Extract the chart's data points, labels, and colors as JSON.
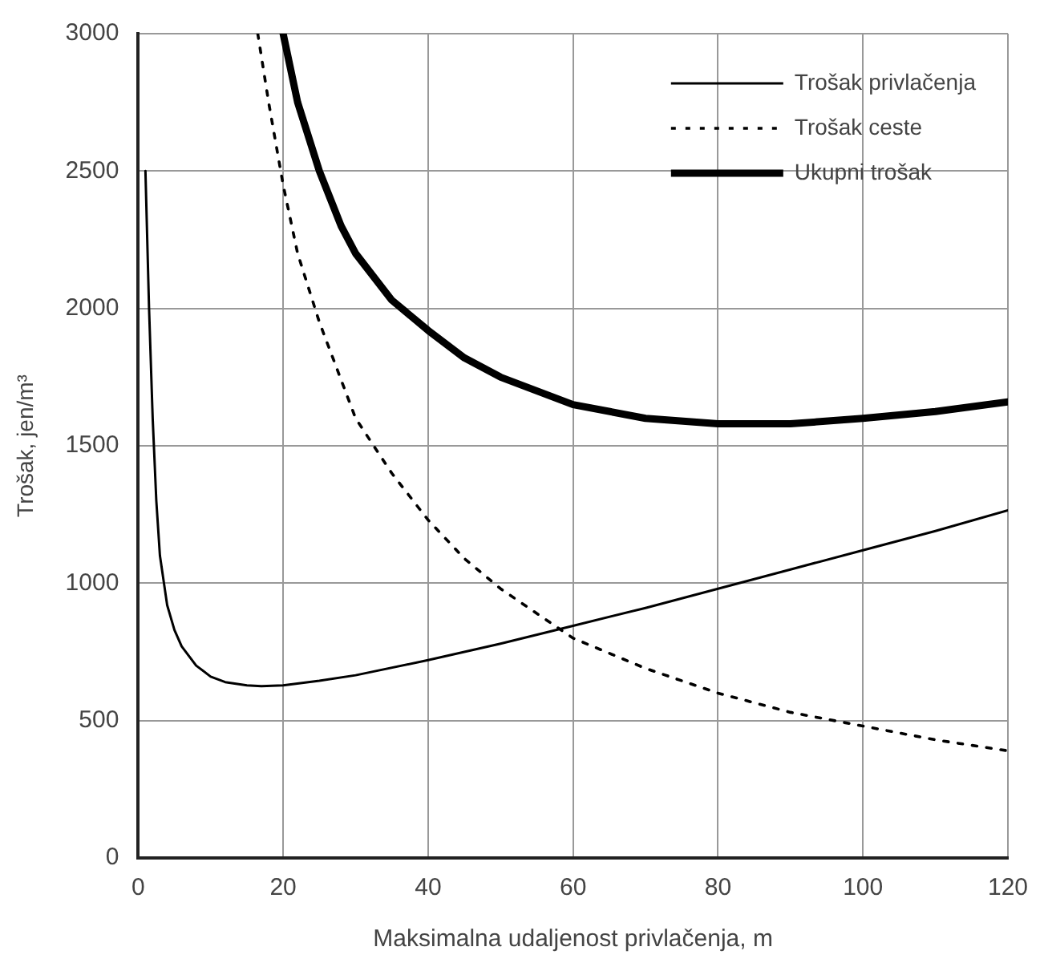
{
  "chart_data": {
    "type": "line",
    "xlabel": "Maksimalna udaljenost privlačenja, m",
    "ylabel": "Trošak, jen/m³",
    "xlim": [
      0,
      120
    ],
    "ylim": [
      0,
      3000
    ],
    "xticks": [
      0,
      20,
      40,
      60,
      80,
      100,
      120
    ],
    "yticks": [
      0,
      500,
      1000,
      1500,
      2000,
      2500,
      3000
    ],
    "grid": true,
    "legend": "top right",
    "marker": "none",
    "series": [
      {
        "name": "Trošak privlačenja",
        "color": "#000000",
        "line_style": "solid",
        "x": [
          1,
          1.5,
          2,
          2.5,
          3,
          4,
          5,
          6,
          8,
          10,
          12,
          15,
          17,
          20,
          25,
          30,
          40,
          50,
          60,
          70,
          80,
          90,
          100,
          110,
          120
        ],
        "values": [
          2500,
          2000,
          1600,
          1300,
          1100,
          920,
          830,
          770,
          700,
          660,
          640,
          628,
          625,
          628,
          645,
          665,
          720,
          780,
          845,
          910,
          980,
          1050,
          1120,
          1190,
          1265
        ]
      },
      {
        "name": "Trošak ceste",
        "color": "#000000",
        "line_style": "dotted",
        "x": [
          16.5,
          18,
          20,
          22,
          25,
          30,
          35,
          40,
          45,
          50,
          60,
          70,
          80,
          90,
          100,
          110,
          120
        ],
        "values": [
          3000,
          2750,
          2450,
          2200,
          1950,
          1600,
          1400,
          1230,
          1090,
          980,
          800,
          690,
          600,
          530,
          480,
          430,
          390
        ]
      },
      {
        "name": "Ukupni trošak",
        "color": "#000000",
        "line_style": "solid",
        "x": [
          20,
          22,
          25,
          28,
          30,
          35,
          40,
          45,
          50,
          60,
          70,
          80,
          90,
          100,
          110,
          120
        ],
        "values": [
          3000,
          2750,
          2500,
          2300,
          2200,
          2030,
          1920,
          1820,
          1750,
          1650,
          1600,
          1580,
          1580,
          1600,
          1625,
          1660
        ]
      }
    ]
  }
}
